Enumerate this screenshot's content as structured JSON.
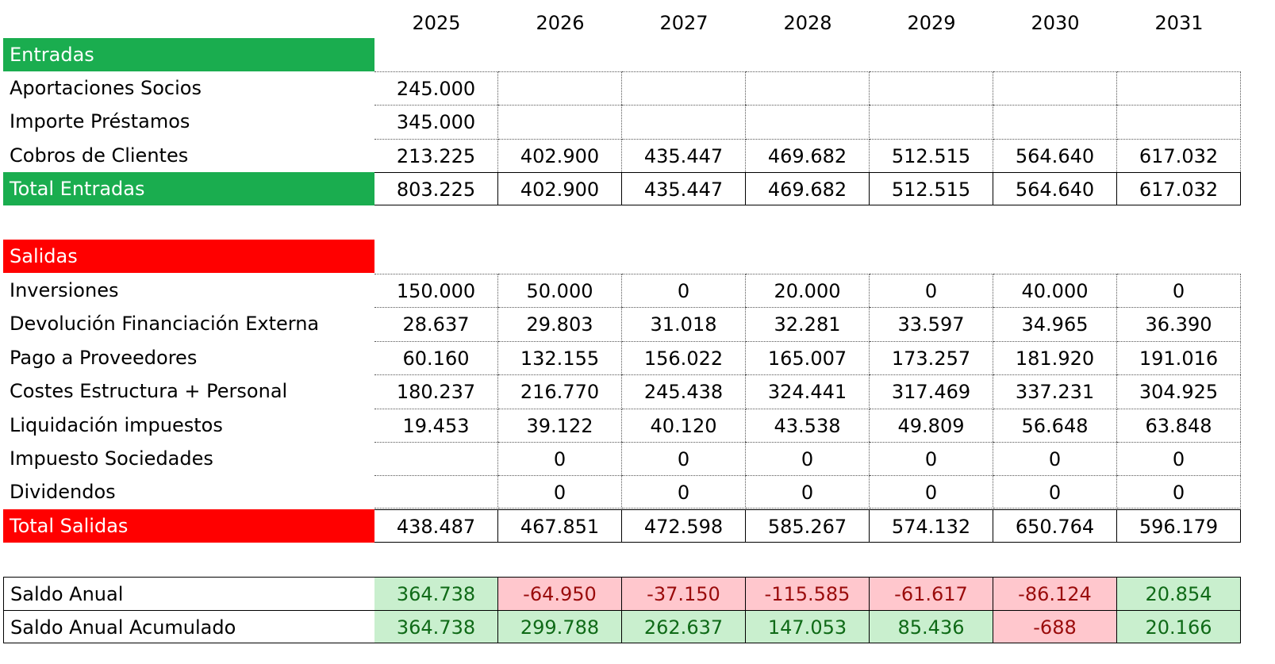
{
  "years": [
    "2025",
    "2026",
    "2027",
    "2028",
    "2029",
    "2030",
    "2031"
  ],
  "entradas": {
    "title": "Entradas",
    "rows": [
      {
        "label": "Aportaciones Socios",
        "values": [
          "245.000",
          "",
          "",
          "",
          "",
          "",
          ""
        ]
      },
      {
        "label": "Importe Préstamos",
        "values": [
          "345.000",
          "",
          "",
          "",
          "",
          "",
          ""
        ]
      },
      {
        "label": "Cobros de Clientes",
        "values": [
          "213.225",
          "402.900",
          "435.447",
          "469.682",
          "512.515",
          "564.640",
          "617.032"
        ]
      }
    ],
    "total": {
      "label": "Total Entradas",
      "values": [
        "803.225",
        "402.900",
        "435.447",
        "469.682",
        "512.515",
        "564.640",
        "617.032"
      ]
    }
  },
  "salidas": {
    "title": "Salidas",
    "rows": [
      {
        "label": "Inversiones",
        "values": [
          "150.000",
          "50.000",
          "0",
          "20.000",
          "0",
          "40.000",
          "0"
        ]
      },
      {
        "label": "Devolución Financiación Externa",
        "values": [
          "28.637",
          "29.803",
          "31.018",
          "32.281",
          "33.597",
          "34.965",
          "36.390"
        ]
      },
      {
        "label": "Pago a Proveedores",
        "values": [
          "60.160",
          "132.155",
          "156.022",
          "165.007",
          "173.257",
          "181.920",
          "191.016"
        ]
      },
      {
        "label": "Costes Estructura + Personal",
        "values": [
          "180.237",
          "216.770",
          "245.438",
          "324.441",
          "317.469",
          "337.231",
          "304.925"
        ]
      },
      {
        "label": "Liquidación impuestos",
        "values": [
          "19.453",
          "39.122",
          "40.120",
          "43.538",
          "49.809",
          "56.648",
          "63.848"
        ]
      },
      {
        "label": "Impuesto Sociedades",
        "values": [
          "",
          "0",
          "0",
          "0",
          "0",
          "0",
          "0"
        ]
      },
      {
        "label": "Dividendos",
        "values": [
          "",
          "0",
          "0",
          "0",
          "0",
          "0",
          "0"
        ]
      }
    ],
    "total": {
      "label": "Total Salidas",
      "values": [
        "438.487",
        "467.851",
        "472.598",
        "585.267",
        "574.132",
        "650.764",
        "596.179"
      ]
    }
  },
  "saldo": {
    "anual": {
      "label": "Saldo Anual",
      "values": [
        "364.738",
        "-64.950",
        "-37.150",
        "-115.585",
        "-61.617",
        "-86.124",
        "20.854"
      ]
    },
    "acumulado": {
      "label": "Saldo Anual Acumulado",
      "values": [
        "364.738",
        "299.788",
        "262.637",
        "147.053",
        "85.436",
        "-688",
        "20.166"
      ]
    }
  },
  "colors": {
    "entradas_header": "#1aad4f",
    "salidas_header": "#ff0000",
    "positive_fill": "#c9efce",
    "positive_text": "#0f6a17",
    "negative_fill": "#ffc7cd",
    "negative_text": "#9a0b0b"
  }
}
